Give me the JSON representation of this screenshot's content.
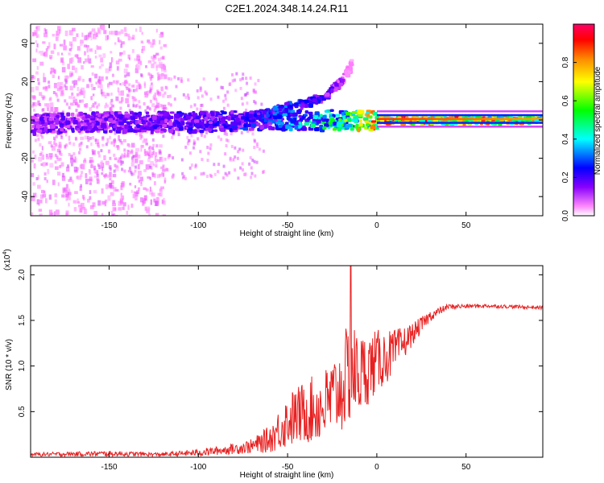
{
  "title": "C2E1.2024.348.14.24.R11",
  "colors": {
    "line": "#e82020",
    "background_light": "#efe6fb",
    "axis": "#000000"
  },
  "chart_data": [
    {
      "type": "heatmap",
      "title": "C2E1.2024.348.14.24.R11",
      "xlabel": "Height of straight line (km)",
      "ylabel": "Frequency (Hz)",
      "xlim": [
        -194,
        93
      ],
      "ylim": [
        -50,
        50
      ],
      "x_ticks": [
        -150,
        -100,
        -50,
        0,
        50
      ],
      "x_tick_labels": [
        "-150",
        "-100",
        "-50",
        "0",
        "50"
      ],
      "y_ticks": [
        -40,
        -20,
        0,
        20,
        40
      ],
      "y_tick_labels": [
        "-40",
        "-20",
        "0",
        "20",
        "40"
      ],
      "colorbar": {
        "label": "Normalized spectral amplitude",
        "range": [
          0,
          1
        ],
        "ticks": [
          0.0,
          0.2,
          0.4,
          0.6,
          0.8
        ],
        "tick_labels": [
          "0.0",
          "0.2",
          "0.4",
          "0.6",
          "0.8"
        ],
        "colormap": [
          "#ffffff",
          "#ff66ff",
          "#7700ff",
          "#0000ff",
          "#00ffff",
          "#00ff00",
          "#ffff00",
          "#ff8800",
          "#ff0000",
          "#ff0066"
        ]
      },
      "description_ridges": [
        {
          "name": "main band",
          "x": [
            -194,
            -150,
            -100,
            -60,
            -40,
            -20,
            0,
            50,
            93
          ],
          "y": [
            -2,
            -1,
            -1,
            0,
            0,
            0,
            0,
            0,
            0
          ],
          "amplitude": [
            0.25,
            0.25,
            0.3,
            0.35,
            0.45,
            0.55,
            0.85,
            0.8,
            0.75
          ]
        },
        {
          "name": "rising branch",
          "x": [
            -80,
            -60,
            -50,
            -40,
            -30,
            -20,
            -14
          ],
          "y": [
            0,
            4,
            7,
            9,
            12,
            20,
            30
          ],
          "amplitude": [
            0.3,
            0.35,
            0.4,
            0.35,
            0.3,
            0.2,
            0.1
          ]
        }
      ]
    },
    {
      "type": "line",
      "xlabel": "Height of straight line (km)",
      "ylabel": "SNR (10 * v/v)",
      "y_multiplier_label": "(x10",
      "y_multiplier_exponent": "4",
      "y_multiplier_close": ")",
      "xlim": [
        -194,
        93
      ],
      "ylim": [
        0,
        2.1
      ],
      "x_ticks": [
        -150,
        -100,
        -50,
        0,
        50
      ],
      "x_tick_labels": [
        "-150",
        "-100",
        "-50",
        "0",
        "50"
      ],
      "y_ticks": [
        0.5,
        1.0,
        1.5,
        2.0
      ],
      "y_tick_labels": [
        "0.5",
        "1.0",
        "1.5",
        "2.0"
      ],
      "envelope": {
        "x": [
          -194,
          -150,
          -120,
          -100,
          -85,
          -70,
          -60,
          -50,
          -40,
          -30,
          -20,
          -15,
          -10,
          0,
          10,
          20,
          30,
          40,
          60,
          93
        ],
        "y_mean": [
          0.03,
          0.04,
          0.03,
          0.05,
          0.08,
          0.12,
          0.2,
          0.4,
          0.5,
          0.55,
          0.75,
          0.95,
          0.9,
          1.05,
          1.15,
          1.35,
          1.55,
          1.65,
          1.66,
          1.64
        ],
        "y_spread": [
          0.02,
          0.03,
          0.02,
          0.04,
          0.05,
          0.08,
          0.15,
          0.3,
          0.35,
          0.4,
          0.5,
          0.6,
          0.45,
          0.35,
          0.25,
          0.12,
          0.06,
          0.03,
          0.02,
          0.02
        ]
      },
      "peak": {
        "x": -14.5,
        "y": 2.1
      }
    }
  ]
}
